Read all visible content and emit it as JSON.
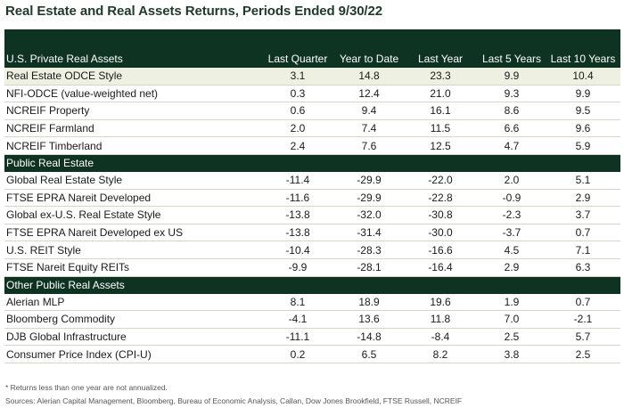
{
  "title": "Real Estate and Real Assets Returns, Periods Ended 9/30/22",
  "columns": [
    "U.S. Private Real Assets",
    "Last Quarter",
    "Year to Date",
    "Last Year",
    "Last 5 Years",
    "Last 10 Years"
  ],
  "sections": [
    {
      "name": "U.S. Private Real Assets",
      "rows": [
        {
          "label": "Real Estate ODCE Style",
          "values": [
            "3.1",
            "14.8",
            "23.3",
            "9.9",
            "10.4"
          ]
        },
        {
          "label": "NFI-ODCE (value-weighted net)",
          "values": [
            "0.3",
            "12.4",
            "21.0",
            "9.3",
            "9.9"
          ]
        },
        {
          "label": "NCREIF Property",
          "values": [
            "0.6",
            "9.4",
            "16.1",
            "8.6",
            "9.5"
          ]
        },
        {
          "label": "NCREIF Farmland",
          "values": [
            "2.0",
            "7.4",
            "11.5",
            "6.6",
            "9.6"
          ]
        },
        {
          "label": "NCREIF Timberland",
          "values": [
            "2.4",
            "7.6",
            "12.5",
            "4.7",
            "5.9"
          ]
        }
      ]
    },
    {
      "name": "Public Real Estate",
      "rows": [
        {
          "label": "Global Real Estate Style",
          "values": [
            "-11.4",
            "-29.9",
            "-22.0",
            "2.0",
            "5.1"
          ]
        },
        {
          "label": "FTSE EPRA Nareit Developed",
          "values": [
            "-11.6",
            "-29.9",
            "-22.8",
            "-0.9",
            "2.9"
          ]
        },
        {
          "label": "Global ex-U.S. Real Estate Style",
          "values": [
            "-13.8",
            "-32.0",
            "-30.8",
            "-2.3",
            "3.7"
          ]
        },
        {
          "label": "FTSE EPRA Nareit Developed ex US",
          "values": [
            "-13.8",
            "-31.4",
            "-30.0",
            "-3.7",
            "0.7"
          ]
        },
        {
          "label": "U.S. REIT Style",
          "values": [
            "-10.4",
            "-28.3",
            "-16.6",
            "4.5",
            "7.1"
          ]
        },
        {
          "label": "FTSE Nareit Equity REITs",
          "values": [
            "-9.9",
            "-28.1",
            "-16.4",
            "2.9",
            "6.3"
          ]
        }
      ]
    },
    {
      "name": "Other Public Real Assets",
      "rows": [
        {
          "label": "Alerian MLP",
          "values": [
            "8.1",
            "18.9",
            "19.6",
            "1.9",
            "0.7"
          ]
        },
        {
          "label": "Bloomberg Commodity",
          "values": [
            "-4.1",
            "13.6",
            "11.8",
            "7.0",
            "-2.1"
          ]
        },
        {
          "label": "DJB Global Infrastructure",
          "values": [
            "-11.1",
            "-14.8",
            "-8.4",
            "2.5",
            "5.7"
          ]
        },
        {
          "label": "Consumer Price Index (CPI-U)",
          "values": [
            "0.2",
            "6.5",
            "8.2",
            "3.8",
            "2.5"
          ]
        }
      ]
    }
  ],
  "footnote": "* Returns less than one year are not annualized.",
  "sources": "Sources: Alerian Capital Management, Bloomberg, Bureau of Economic Analysis, Callan, Dow Jones Brookfield, FTSE Russell, NCREIF",
  "colors": {
    "header_bg": "#0f3323",
    "highlight_row": "#eef0e2",
    "title": "#1f3a2c"
  }
}
